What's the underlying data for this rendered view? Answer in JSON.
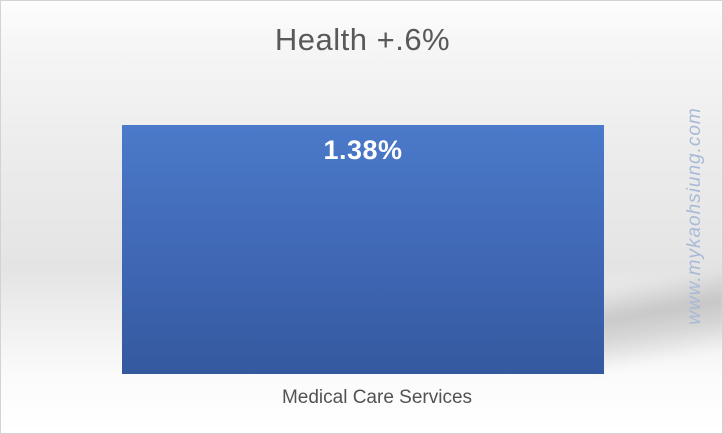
{
  "chart_data": {
    "type": "bar",
    "title": "Health +.6%",
    "categories": [
      "Medical Care Services"
    ],
    "values": [
      1.38
    ],
    "data_labels": [
      "1.38%"
    ],
    "xlabel": "",
    "ylabel": "",
    "legend": false,
    "grid": false,
    "axes_visible": false,
    "data_label_position": "inside-end",
    "colors": {
      "bar_top": "#4B7ACA",
      "bar_bottom": "#35599F",
      "data_label": "#FFFFFF",
      "title_text": "#595959",
      "category_text": "#525252",
      "background_band": "#E4E4E4"
    }
  },
  "watermark": {
    "text": "www.mykaohsiung.com",
    "color": "#A9BAD6"
  }
}
